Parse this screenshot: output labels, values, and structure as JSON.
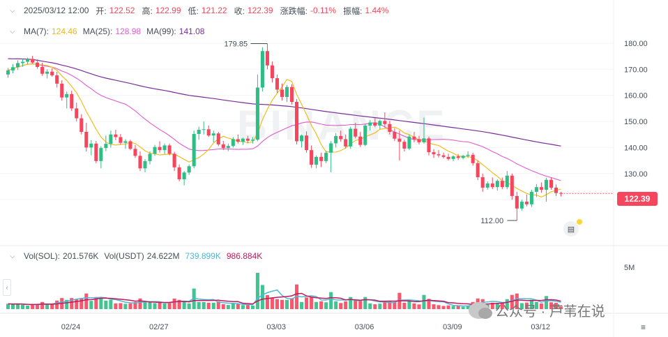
{
  "header": {
    "datetime": "2025/03/12 12:00",
    "open_label": "开:",
    "open": "122.52",
    "high_label": "高:",
    "high": "122.99",
    "low_label": "低:",
    "low": "121.22",
    "close_label": "收:",
    "close": "122.39",
    "change_label": "涨跌幅:",
    "change": "-0.11%",
    "amplitude_label": "振幅:",
    "amplitude": "1.44%"
  },
  "ma": {
    "ma7_label": "MA(7):",
    "ma7_value": "124.46",
    "ma25_label": "MA(25):",
    "ma25_value": "128.98",
    "ma99_label": "MA(99):",
    "ma99_value": "141.08"
  },
  "volume": {
    "sol_label": "Vol(SOL):",
    "sol_value": "201.576K",
    "usdt_label": "Vol(USDT)",
    "usdt_value": "24.622M",
    "ma1_value": "739.899K",
    "ma2_value": "986.884K",
    "axis_label": "5M"
  },
  "price_axis": [
    "180.00",
    "170.00",
    "160.00",
    "150.00",
    "140.00",
    "130.00"
  ],
  "date_axis": [
    "02/24",
    "02/27",
    "03/03",
    "03/06",
    "03/09",
    "03/12"
  ],
  "annotations": {
    "high": "179.85",
    "low": "112.00"
  },
  "current_price": "122.39",
  "watermark": "BINANCE",
  "overlay_text": "公众号 · 芦苇在说",
  "colors": {
    "up": "#2ebd85",
    "down": "#f6465d",
    "ma7": "#f0b90b",
    "ma25": "#e05bd1",
    "ma99": "#7b2c9a",
    "vol_ma1": "#4fb8d6",
    "vol_ma2": "#c2185b"
  },
  "chart_data": {
    "type": "candlestick",
    "interval": "4h",
    "ylim": [
      110,
      185
    ],
    "candles": [
      [
        168.0,
        170.5,
        166.8,
        169.6
      ],
      [
        169.6,
        172.0,
        168.5,
        170.8
      ],
      [
        170.8,
        173.5,
        169.8,
        172.4
      ],
      [
        172.4,
        174.0,
        171.0,
        172.9
      ],
      [
        172.9,
        174.5,
        172.0,
        174.0
      ],
      [
        174.0,
        175.2,
        172.2,
        172.6
      ],
      [
        172.6,
        173.8,
        170.2,
        170.9
      ],
      [
        170.9,
        172.5,
        167.5,
        168.3
      ],
      [
        168.3,
        170.0,
        166.5,
        169.1
      ],
      [
        169.1,
        170.4,
        167.2,
        167.7
      ],
      [
        167.7,
        169.0,
        163.0,
        164.5
      ],
      [
        164.5,
        165.8,
        158.0,
        159.2
      ],
      [
        159.2,
        161.5,
        155.0,
        160.5
      ],
      [
        160.5,
        161.8,
        154.0,
        155.0
      ],
      [
        155.0,
        157.2,
        150.0,
        151.2
      ],
      [
        151.2,
        152.8,
        145.0,
        146.0
      ],
      [
        146.0,
        149.5,
        138.5,
        140.0
      ],
      [
        140.0,
        142.8,
        137.0,
        141.5
      ],
      [
        141.5,
        142.5,
        134.0,
        134.8
      ],
      [
        134.8,
        140.5,
        132.0,
        139.8
      ],
      [
        139.8,
        144.6,
        138.6,
        141.4
      ],
      [
        141.4,
        146.5,
        140.0,
        145.0
      ],
      [
        145.0,
        146.8,
        142.8,
        144.0
      ],
      [
        144.0,
        145.2,
        141.0,
        141.8
      ],
      [
        141.8,
        143.2,
        139.5,
        142.4
      ],
      [
        142.4,
        143.0,
        139.0,
        139.5
      ],
      [
        139.5,
        141.0,
        136.0,
        136.8
      ],
      [
        136.8,
        138.5,
        131.0,
        132.0
      ],
      [
        132.0,
        135.5,
        130.5,
        134.8
      ],
      [
        134.8,
        138.5,
        133.5,
        137.6
      ],
      [
        137.6,
        141.0,
        136.8,
        140.2
      ],
      [
        140.2,
        142.4,
        138.0,
        139.0
      ],
      [
        139.0,
        141.5,
        137.5,
        140.8
      ],
      [
        140.8,
        141.5,
        137.0,
        137.6
      ],
      [
        137.6,
        138.4,
        131.0,
        132.4
      ],
      [
        132.4,
        133.5,
        127.0,
        127.8
      ],
      [
        127.8,
        131.0,
        125.5,
        130.4
      ],
      [
        130.4,
        133.5,
        129.5,
        132.8
      ],
      [
        132.8,
        146.5,
        132.0,
        145.2
      ],
      [
        145.2,
        148.0,
        143.0,
        146.8
      ],
      [
        146.8,
        150.0,
        145.0,
        147.0
      ],
      [
        147.0,
        148.5,
        144.0,
        144.6
      ],
      [
        144.6,
        146.5,
        142.0,
        145.4
      ],
      [
        145.4,
        146.0,
        140.5,
        141.2
      ],
      [
        141.2,
        142.5,
        139.0,
        139.8
      ],
      [
        139.8,
        141.5,
        138.6,
        140.6
      ],
      [
        140.6,
        144.0,
        140.0,
        143.2
      ],
      [
        143.2,
        145.0,
        141.5,
        142.2
      ],
      [
        142.2,
        143.8,
        141.0,
        143.4
      ],
      [
        143.4,
        144.5,
        141.6,
        142.6
      ],
      [
        142.6,
        144.0,
        141.5,
        143.0
      ],
      [
        143.0,
        168.0,
        142.4,
        163.0
      ],
      [
        163.0,
        178.5,
        161.5,
        177.0
      ],
      [
        177.0,
        179.85,
        170.0,
        171.5
      ],
      [
        171.5,
        173.0,
        165.0,
        166.6
      ],
      [
        166.6,
        168.0,
        161.0,
        162.2
      ],
      [
        162.2,
        164.5,
        158.0,
        159.4
      ],
      [
        159.4,
        164.0,
        157.5,
        163.2
      ],
      [
        163.2,
        164.2,
        156.5,
        157.5
      ],
      [
        157.5,
        158.6,
        141.2,
        142.4
      ],
      [
        142.4,
        145.0,
        140.0,
        144.6
      ],
      [
        144.6,
        146.2,
        138.0,
        139.0
      ],
      [
        139.0,
        140.8,
        132.2,
        133.4
      ],
      [
        133.4,
        137.0,
        132.0,
        136.4
      ],
      [
        136.4,
        138.0,
        132.5,
        134.8
      ],
      [
        134.8,
        138.8,
        134.0,
        138.0
      ],
      [
        138.0,
        142.5,
        130.5,
        141.6
      ],
      [
        141.6,
        145.5,
        140.0,
        144.4
      ],
      [
        144.4,
        146.5,
        142.2,
        143.2
      ],
      [
        143.2,
        145.0,
        139.6,
        140.4
      ],
      [
        140.4,
        148.0,
        139.5,
        147.2
      ],
      [
        147.2,
        149.5,
        143.5,
        144.2
      ],
      [
        144.2,
        146.0,
        140.2,
        141.0
      ],
      [
        141.0,
        149.0,
        140.5,
        148.4
      ],
      [
        148.4,
        150.5,
        146.5,
        149.6
      ],
      [
        149.6,
        151.2,
        147.8,
        148.4
      ],
      [
        148.4,
        150.8,
        147.0,
        150.2
      ],
      [
        150.2,
        153.5,
        147.6,
        149.0
      ],
      [
        149.0,
        150.2,
        145.0,
        146.0
      ],
      [
        146.0,
        147.5,
        142.5,
        143.4
      ],
      [
        143.4,
        146.5,
        135.0,
        142.2
      ],
      [
        142.2,
        143.0,
        138.5,
        139.6
      ],
      [
        139.6,
        145.0,
        139.0,
        144.2
      ],
      [
        144.2,
        146.0,
        142.0,
        143.2
      ],
      [
        143.2,
        144.5,
        141.2,
        142.0
      ],
      [
        142.0,
        151.5,
        141.5,
        143.5
      ],
      [
        143.5,
        144.2,
        137.0,
        138.2
      ],
      [
        138.2,
        139.4,
        136.0,
        137.4
      ],
      [
        137.4,
        139.0,
        136.2,
        137.0
      ],
      [
        137.0,
        138.0,
        135.8,
        136.4
      ],
      [
        136.4,
        137.6,
        135.0,
        135.6
      ],
      [
        135.6,
        137.0,
        134.8,
        136.6
      ],
      [
        136.6,
        137.5,
        135.2,
        136.0
      ],
      [
        136.0,
        137.2,
        135.5,
        136.8
      ],
      [
        136.8,
        138.5,
        136.0,
        137.2
      ],
      [
        137.2,
        138.0,
        133.0,
        134.0
      ],
      [
        134.0,
        135.0,
        127.5,
        128.6
      ],
      [
        128.6,
        130.0,
        123.0,
        124.6
      ],
      [
        124.6,
        127.0,
        123.8,
        126.2
      ],
      [
        126.2,
        128.5,
        124.0,
        124.8
      ],
      [
        124.8,
        127.8,
        123.5,
        127.2
      ],
      [
        127.2,
        128.5,
        124.0,
        124.8
      ],
      [
        124.8,
        131.0,
        124.0,
        129.2
      ],
      [
        129.2,
        130.0,
        120.0,
        121.4
      ],
      [
        121.4,
        123.0,
        112.0,
        116.6
      ],
      [
        116.6,
        120.0,
        115.8,
        119.2
      ],
      [
        119.2,
        122.0,
        117.4,
        118.2
      ],
      [
        118.2,
        123.8,
        117.2,
        123.0
      ],
      [
        123.0,
        126.0,
        121.0,
        124.8
      ],
      [
        124.8,
        126.6,
        122.6,
        123.8
      ],
      [
        123.8,
        128.4,
        119.2,
        127.6
      ],
      [
        127.6,
        128.6,
        123.8,
        124.6
      ],
      [
        124.6,
        125.8,
        121.4,
        122.52
      ],
      [
        122.52,
        122.99,
        121.22,
        122.39
      ]
    ],
    "ma7_last": 124.46,
    "ma25_last": 128.98,
    "ma99_last": 141.08
  }
}
